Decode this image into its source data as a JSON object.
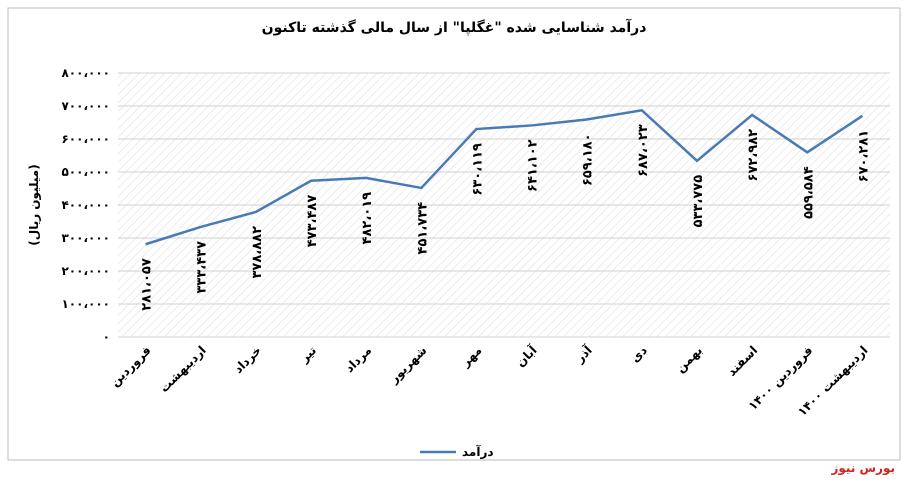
{
  "chart_data": {
    "type": "line",
    "title": "درآمد شناسایی شده \"غگلپا\" از سال مالی گذشته تاکنون",
    "y_label": "(میلیون ریال)",
    "categories": [
      "فروردین",
      "اردیبهشت",
      "خرداد",
      "تیر",
      "مرداد",
      "شهریور",
      "مهر",
      "آبان",
      "آذر",
      "دی",
      "بهمن",
      "اسفند",
      "فروردین ۱۴۰۰",
      "اردیبهشت ۱۴۰۰"
    ],
    "series": [
      {
        "name": "درآمد",
        "color": "#4a7ab5",
        "values": [
          281057,
          333437,
          378882,
          473487,
          482019,
          451734,
          630119,
          641102,
          659180,
          687023,
          533775,
          672982,
          559584,
          670281
        ],
        "value_labels": [
          "۲۸۱،۰۵۷",
          "۳۳۳،۴۳۷",
          "۳۷۸،۸۸۲",
          "۴۷۳،۴۸۷",
          "۴۸۲،۰۱۹",
          "۴۵۱،۷۳۴",
          "۶۳۰،۱۱۹",
          "۶۴۱،۱۰۲",
          "۶۵۹،۱۸۰",
          "۶۸۷،۰۲۳",
          "۵۳۳،۷۷۵",
          "۶۷۲،۹۸۲",
          "۵۵۹،۵۸۴",
          "۶۷۰،۲۸۱"
        ]
      }
    ],
    "ylim": [
      0,
      800000
    ],
    "yticks": [
      {
        "value": 0,
        "label": "۰"
      },
      {
        "value": 100000,
        "label": "۱۰۰،۰۰۰"
      },
      {
        "value": 200000,
        "label": "۲۰۰،۰۰۰"
      },
      {
        "value": 300000,
        "label": "۳۰۰،۰۰۰"
      },
      {
        "value": 400000,
        "label": "۴۰۰،۰۰۰"
      },
      {
        "value": 500000,
        "label": "۵۰۰،۰۰۰"
      },
      {
        "value": 600000,
        "label": "۶۰۰،۰۰۰"
      },
      {
        "value": 700000,
        "label": "۷۰۰،۰۰۰"
      },
      {
        "value": 800000,
        "label": "۸۰۰،۰۰۰"
      }
    ],
    "grid": true,
    "legend": "bottom",
    "source": "بورس نیوز"
  }
}
